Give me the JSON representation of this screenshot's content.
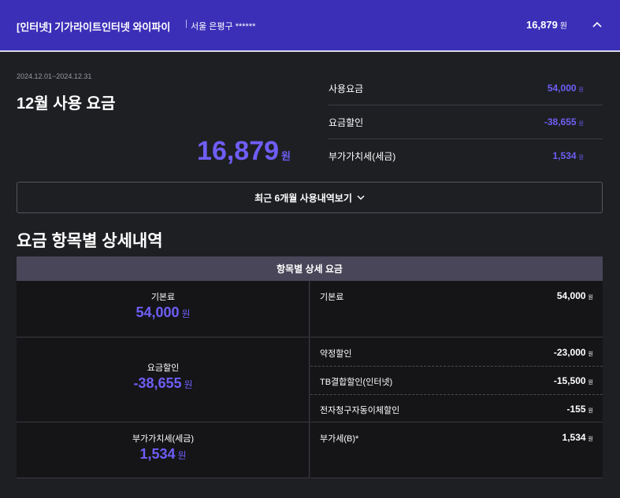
{
  "header": {
    "title": "[인터넷] 기가라이트인터넷 와이파이",
    "location": "서울 은평구 ******",
    "total": "16,879",
    "currency": "원"
  },
  "summary": {
    "period": "2024.12.01~2024.12.31",
    "title": "12월 사용 요금",
    "total": "16,879",
    "items": [
      {
        "label": "사용요금",
        "amount": "54,000"
      },
      {
        "label": "요금할인",
        "amount": "-38,655"
      },
      {
        "label": "부가가치세(세금)",
        "amount": "1,534"
      }
    ],
    "toggle": "최근 6개월 사용내역보기"
  },
  "details": {
    "title": "요금 항목별 상세내역",
    "table_header": "항목별 상세 요금",
    "groups": [
      {
        "label": "기본료",
        "amount": "54,000",
        "items": [
          {
            "label": "기본료",
            "amount": "54,000"
          }
        ]
      },
      {
        "label": "요금할인",
        "amount": "-38,655",
        "items": [
          {
            "label": "약정할인",
            "amount": "-23,000"
          },
          {
            "label": "TB결합할인(인터넷)",
            "amount": "-15,500"
          },
          {
            "label": "전자청구자동이체할인",
            "amount": "-155"
          }
        ]
      },
      {
        "label": "부가가치세(세금)",
        "amount": "1,534",
        "items": [
          {
            "label": "부가세(B)*",
            "amount": "1,534"
          }
        ]
      }
    ]
  }
}
